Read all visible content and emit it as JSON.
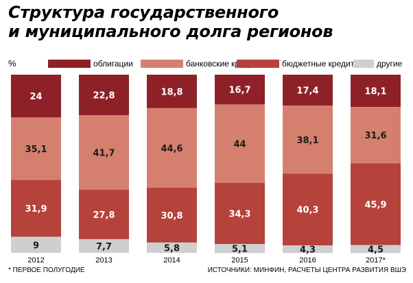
{
  "title": {
    "line1": "Структура государственного",
    "line2": "и муниципального долга регионов"
  },
  "unit": "%",
  "footnote": "* ПЕРВОЕ ПОЛУГОДИЕ",
  "source": "ИСТОЧНИКИ: МИНФИН, РАСЧЕТЫ ЦЕНТРА РАЗВИТИЯ ВШЭ",
  "colors": {
    "облигации": "#8e2128",
    "банковские кредиты": "#d5806f",
    "бюджетные кредиты": "#b5423b",
    "другие": "#cfcfcf"
  },
  "chart_data": {
    "type": "bar",
    "stacked": true,
    "categories": [
      "2012",
      "2013",
      "2014",
      "2015",
      "2016",
      "2017*"
    ],
    "series": [
      {
        "name": "облигации",
        "values": [
          24,
          22.8,
          18.8,
          16.7,
          17.4,
          18.1
        ]
      },
      {
        "name": "банковские кредиты",
        "values": [
          35.1,
          41.7,
          44.6,
          44,
          38.1,
          31.6
        ]
      },
      {
        "name": "бюджетные кредиты",
        "values": [
          31.9,
          27.8,
          30.8,
          34.3,
          40.3,
          45.9
        ]
      },
      {
        "name": "другие",
        "values": [
          9,
          7.7,
          5.8,
          5.1,
          4.3,
          4.5
        ]
      }
    ],
    "value_labels": [
      [
        "24",
        "22,8",
        "18,8",
        "16,7",
        "17,4",
        "18,1"
      ],
      [
        "35,1",
        "41,7",
        "44,6",
        "44",
        "38,1",
        "31,6"
      ],
      [
        "31,9",
        "27,8",
        "30,8",
        "34,3",
        "40,3",
        "45,9"
      ],
      [
        "9",
        "7,7",
        "5,8",
        "5,1",
        "4,3",
        "4,5"
      ]
    ],
    "ylim": [
      0,
      100
    ],
    "legend": "top",
    "grid": false
  }
}
